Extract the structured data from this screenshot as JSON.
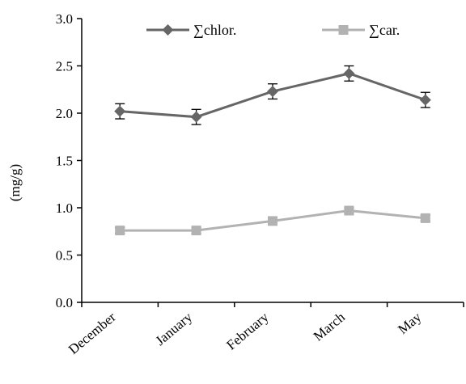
{
  "chart_data": {
    "type": "line",
    "categories": [
      "December",
      "January",
      "February",
      "March",
      "May"
    ],
    "series": [
      {
        "name": "∑chlor.",
        "values": [
          2.02,
          1.96,
          2.23,
          2.42,
          2.14
        ],
        "errors": [
          0.08,
          0.08,
          0.08,
          0.08,
          0.08
        ],
        "color": "#666666",
        "marker": "diamond"
      },
      {
        "name": "∑car.",
        "values": [
          0.76,
          0.76,
          0.86,
          0.97,
          0.89
        ],
        "errors": [
          0.03,
          0.03,
          0.03,
          0.03,
          0.03
        ],
        "color": "#b2b2b2",
        "marker": "square"
      }
    ],
    "ylabel": "(mg/g)",
    "xlabel": "",
    "title": "",
    "ylim": [
      0,
      3.0
    ],
    "yticks": [
      "0.0",
      "0.5",
      "1.0",
      "1.5",
      "2.0",
      "2.5",
      "3.0"
    ],
    "grid": false,
    "legend_position": "top"
  }
}
